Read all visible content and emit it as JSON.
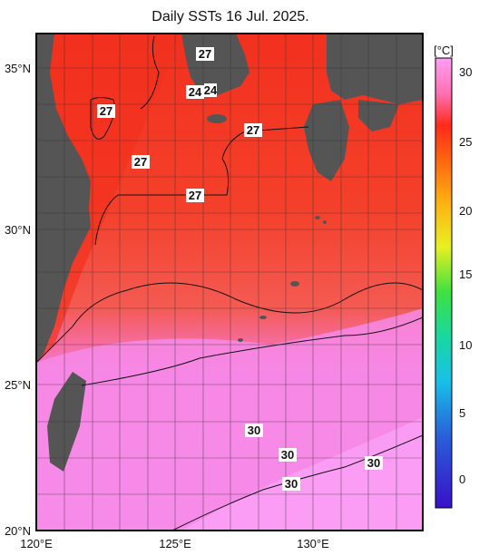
{
  "title": "Daily SSTs 16 Jul. 2025.",
  "unit": "[°C]",
  "lon_ticks": [
    "120°E",
    "125°E",
    "130°E"
  ],
  "lat_ticks": [
    "35°N",
    "30°N",
    "25°N",
    "20°N"
  ],
  "colorbar": {
    "ticks": [
      "30",
      "25",
      "20",
      "15",
      "10",
      "5",
      "0"
    ],
    "colors": [
      "#ff9ff5",
      "#ff3a28",
      "#ff9a12",
      "#ffee20",
      "#1ee63c",
      "#1adbd8",
      "#2a5ad8",
      "#3a10c8"
    ]
  },
  "contour_labels": [
    {
      "text": "27",
      "name": "contour-label-27-yellow-sea"
    },
    {
      "text": "27",
      "name": "contour-label-27-korea"
    },
    {
      "text": "24",
      "name": "contour-label-24-korea"
    },
    {
      "text": "24",
      "name": "contour-label-24-korea-2"
    },
    {
      "text": "27",
      "name": "contour-label-27-shanghai"
    },
    {
      "text": "27",
      "name": "contour-label-27-east-china-sea"
    },
    {
      "text": "27",
      "name": "contour-label-27-kyushu"
    },
    {
      "text": "30",
      "name": "contour-label-30-a"
    },
    {
      "text": "30",
      "name": "contour-label-30-b"
    },
    {
      "text": "30",
      "name": "contour-label-30-c"
    },
    {
      "text": "30",
      "name": "contour-label-30-d"
    }
  ],
  "colors": {
    "warm_red": "#f43c2c",
    "hot_pink": "#f78ae8",
    "land": "#555555"
  }
}
